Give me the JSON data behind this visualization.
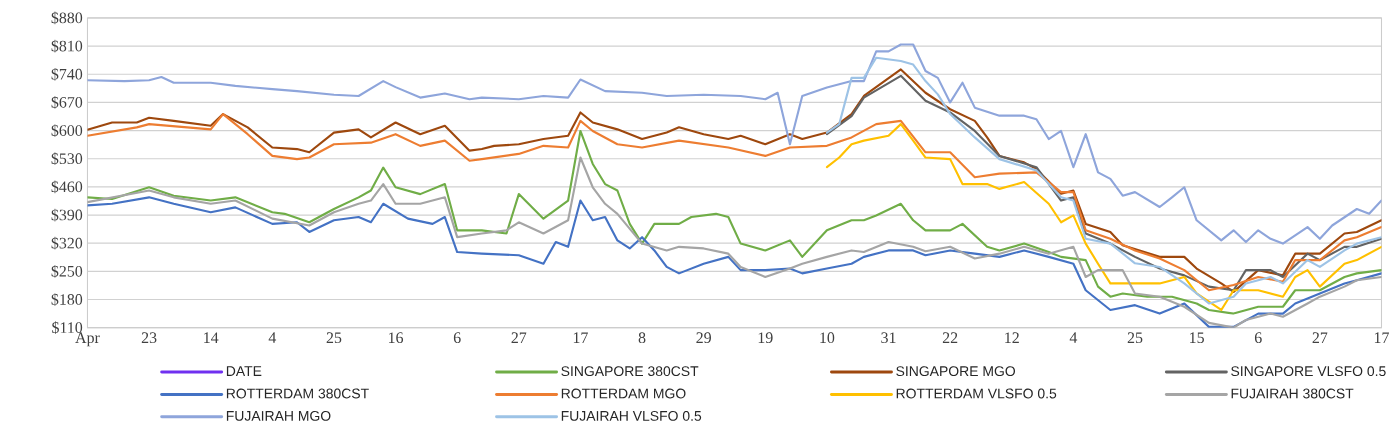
{
  "chart_data": {
    "type": "line",
    "ylim": [
      110,
      880
    ],
    "categories": [
      "Apr",
      null,
      null,
      null,
      null,
      "23",
      null,
      null,
      null,
      null,
      "14",
      null,
      null,
      null,
      null,
      "4",
      null,
      null,
      null,
      null,
      "25",
      null,
      null,
      null,
      null,
      "16",
      null,
      null,
      null,
      null,
      "6",
      null,
      null,
      null,
      null,
      "27",
      null,
      null,
      null,
      null,
      "17",
      null,
      null,
      null,
      null,
      "8",
      null,
      null,
      null,
      null,
      "29",
      null,
      null,
      null,
      null,
      "19",
      null,
      null,
      null,
      null,
      "10",
      null,
      null,
      null,
      null,
      "31",
      null,
      null,
      null,
      null,
      "22",
      null,
      null,
      null,
      null,
      "12",
      null,
      null,
      null,
      null,
      "4",
      null,
      null,
      null,
      null,
      "25",
      null,
      null,
      null,
      null,
      "15",
      null,
      null,
      null,
      null,
      "6",
      null,
      null,
      null,
      null,
      "27",
      null,
      null,
      null,
      null,
      "17"
    ],
    "yticks": [
      {
        "value": 110,
        "label": "$110"
      },
      {
        "value": 180,
        "label": "$180"
      },
      {
        "value": 250,
        "label": "$250"
      },
      {
        "value": 320,
        "label": "$320"
      },
      {
        "value": 390,
        "label": "$390"
      },
      {
        "value": 460,
        "label": "$460"
      },
      {
        "value": 530,
        "label": "$530"
      },
      {
        "value": 600,
        "label": "$600"
      },
      {
        "value": 670,
        "label": "$670"
      },
      {
        "value": 740,
        "label": "$740"
      },
      {
        "value": 810,
        "label": "$810"
      },
      {
        "value": 880,
        "label": "$880"
      }
    ],
    "grid": "y",
    "legend": "bottom",
    "series": [
      {
        "name": "DATE",
        "color": "#7030f0",
        "values": [
          null,
          null,
          null,
          null,
          null,
          null,
          null,
          null,
          null,
          null,
          null,
          null,
          null,
          null,
          null,
          null,
          null,
          null,
          null,
          null,
          null,
          null,
          null,
          null,
          null,
          null,
          null,
          null,
          null,
          null,
          null,
          null,
          null,
          null,
          null,
          null,
          null,
          null,
          null,
          null,
          null,
          null,
          null,
          null,
          null,
          null,
          null,
          null,
          null,
          null,
          null,
          null,
          null,
          null,
          null,
          null,
          null,
          null,
          null,
          null,
          null,
          null,
          null,
          null,
          null,
          null,
          null,
          null,
          null,
          null,
          null,
          null,
          null,
          null,
          null,
          null,
          null,
          null,
          null,
          null,
          null,
          null,
          null,
          null,
          null,
          null,
          null,
          null,
          null,
          null,
          null,
          null,
          null,
          null,
          null,
          null,
          null,
          null,
          null,
          null,
          null,
          null,
          null,
          null,
          null,
          null
        ]
      },
      {
        "name": "SINGAPORE 380CST",
        "color": "#70ad47",
        "values": [
          434,
          null,
          430,
          null,
          null,
          459,
          null,
          438,
          null,
          null,
          426,
          null,
          434,
          null,
          null,
          397,
          393,
          null,
          372,
          null,
          405,
          null,
          434,
          451,
          508,
          459,
          null,
          442,
          null,
          467,
          352,
          null,
          352,
          null,
          344,
          442,
          null,
          381,
          null,
          426,
          599,
          517,
          467,
          451,
          368,
          319,
          368,
          null,
          368,
          385,
          null,
          393,
          385,
          319,
          null,
          302,
          null,
          327,
          286,
          null,
          352,
          null,
          377,
          377,
          389,
          null,
          418,
          377,
          352,
          null,
          352,
          368,
          null,
          311,
          302,
          null,
          319,
          null,
          298,
          286,
          null,
          278,
          212,
          187,
          195,
          null,
          187,
          null,
          187,
          null,
          170,
          154,
          null,
          145,
          null,
          162,
          null,
          162,
          203,
          null,
          203,
          null,
          236,
          245,
          null,
          253
        ]
      },
      {
        "name": "SINGAPORE MGO",
        "color": "#9e480e",
        "values": [
          602,
          null,
          620,
          null,
          620,
          632,
          null,
          624,
          null,
          null,
          612,
          641,
          null,
          608,
          null,
          558,
          null,
          554,
          546,
          null,
          595,
          null,
          603,
          583,
          null,
          620,
          null,
          591,
          null,
          612,
          null,
          550,
          554,
          562,
          null,
          566,
          null,
          579,
          null,
          587,
          645,
          620,
          null,
          603,
          null,
          579,
          null,
          595,
          608,
          null,
          591,
          null,
          579,
          587,
          null,
          566,
          null,
          591,
          579,
          null,
          595,
          null,
          641,
          686,
          null,
          null,
          752,
          null,
          694,
          null,
          653,
          null,
          624,
          583,
          537,
          null,
          521,
          504,
          null,
          443,
          451,
          368,
          null,
          348,
          315,
          null,
          null,
          286,
          null,
          286,
          257,
          null,
          220,
          199,
          null,
          253,
          null,
          240,
          294,
          null,
          294,
          null,
          344,
          348,
          null,
          377
        ]
      },
      {
        "name": "SINGAPORE VLSFO 0.5",
        "color": "#636363",
        "values": [
          null,
          null,
          null,
          null,
          null,
          null,
          null,
          null,
          null,
          null,
          null,
          null,
          null,
          null,
          null,
          null,
          null,
          null,
          null,
          null,
          null,
          null,
          null,
          null,
          null,
          null,
          null,
          null,
          null,
          null,
          null,
          null,
          null,
          null,
          null,
          null,
          null,
          null,
          null,
          null,
          null,
          null,
          null,
          null,
          null,
          null,
          null,
          null,
          null,
          null,
          null,
          null,
          null,
          null,
          null,
          null,
          null,
          null,
          null,
          null,
          591,
          null,
          636,
          682,
          null,
          null,
          736,
          null,
          674,
          null,
          645,
          null,
          599,
          null,
          537,
          null,
          null,
          509,
          null,
          426,
          434,
          344,
          null,
          319,
          null,
          286,
          null,
          257,
          null,
          240,
          null,
          212,
          null,
          203,
          253,
          null,
          253,
          236,
          null,
          294,
          278,
          null,
          311,
          311,
          null,
          331
        ]
      },
      {
        "name": "ROTTERDAM 380CST",
        "color": "#4472c4",
        "values": [
          414,
          null,
          418,
          null,
          null,
          434,
          null,
          418,
          null,
          null,
          397,
          null,
          409,
          null,
          null,
          368,
          null,
          372,
          348,
          null,
          377,
          null,
          385,
          372,
          418,
          null,
          381,
          null,
          368,
          385,
          298,
          null,
          294,
          null,
          null,
          290,
          null,
          269,
          323,
          311,
          426,
          377,
          385,
          327,
          307,
          335,
          302,
          261,
          245,
          null,
          269,
          null,
          286,
          253,
          null,
          253,
          null,
          257,
          245,
          null,
          257,
          null,
          269,
          286,
          null,
          302,
          null,
          302,
          290,
          null,
          302,
          null,
          294,
          null,
          286,
          null,
          302,
          null,
          286,
          null,
          269,
          203,
          null,
          154,
          null,
          166,
          null,
          145,
          null,
          170,
          null,
          112,
          null,
          112,
          null,
          145,
          null,
          145,
          170,
          null,
          195,
          null,
          220,
          228,
          null,
          245
        ]
      },
      {
        "name": "ROTTERDAM MGO",
        "color": "#ed7d31",
        "values": [
          587,
          null,
          null,
          null,
          608,
          616,
          null,
          null,
          null,
          null,
          603,
          641,
          null,
          591,
          null,
          537,
          null,
          529,
          533,
          null,
          566,
          null,
          null,
          570,
          null,
          591,
          null,
          562,
          null,
          575,
          null,
          525,
          529,
          null,
          null,
          542,
          null,
          562,
          null,
          558,
          624,
          599,
          null,
          566,
          null,
          558,
          null,
          null,
          575,
          null,
          null,
          null,
          558,
          null,
          null,
          537,
          null,
          558,
          null,
          null,
          562,
          null,
          583,
          null,
          616,
          null,
          624,
          null,
          546,
          null,
          546,
          null,
          484,
          null,
          493,
          null,
          null,
          496,
          null,
          447,
          447,
          352,
          null,
          331,
          null,
          302,
          null,
          282,
          null,
          253,
          null,
          203,
          null,
          216,
          null,
          236,
          null,
          224,
          278,
          null,
          278,
          null,
          327,
          335,
          null,
          360
        ]
      },
      {
        "name": "ROTTERDAM VLSFO 0.5",
        "color": "#ffc000",
        "values": [
          null,
          null,
          null,
          null,
          null,
          null,
          null,
          null,
          null,
          null,
          null,
          null,
          null,
          null,
          null,
          null,
          null,
          null,
          null,
          null,
          null,
          null,
          null,
          null,
          null,
          null,
          null,
          null,
          null,
          null,
          null,
          null,
          null,
          null,
          null,
          null,
          null,
          null,
          null,
          null,
          null,
          null,
          null,
          null,
          null,
          null,
          null,
          null,
          null,
          null,
          null,
          null,
          null,
          null,
          null,
          null,
          null,
          null,
          null,
          null,
          509,
          533,
          566,
          575,
          null,
          587,
          616,
          575,
          533,
          null,
          529,
          467,
          null,
          467,
          455,
          null,
          472,
          null,
          418,
          372,
          389,
          319,
          269,
          220,
          null,
          220,
          null,
          220,
          null,
          236,
          195,
          null,
          154,
          203,
          null,
          203,
          null,
          187,
          236,
          253,
          212,
          null,
          269,
          278,
          null,
          311
        ]
      },
      {
        "name": "FUJAIRAH  380CST",
        "color": "#a5a5a5",
        "values": [
          422,
          null,
          null,
          null,
          null,
          451,
          null,
          434,
          null,
          null,
          418,
          null,
          426,
          null,
          null,
          381,
          null,
          null,
          364,
          null,
          397,
          null,
          418,
          426,
          467,
          418,
          null,
          418,
          null,
          434,
          335,
          null,
          344,
          null,
          352,
          372,
          null,
          344,
          null,
          377,
          533,
          459,
          418,
          393,
          null,
          319,
          null,
          302,
          311,
          null,
          307,
          null,
          294,
          261,
          null,
          236,
          null,
          257,
          269,
          null,
          286,
          null,
          302,
          298,
          null,
          323,
          null,
          311,
          300,
          null,
          311,
          null,
          282,
          null,
          294,
          null,
          311,
          null,
          294,
          null,
          311,
          236,
          253,
          null,
          253,
          195,
          null,
          187,
          null,
          162,
          null,
          122,
          null,
          110,
          129,
          null,
          145,
          137,
          null,
          170,
          187,
          null,
          212,
          228,
          null,
          236
        ]
      },
      {
        "name": "FUJAIRAH MGO",
        "color": "#8ea5db",
        "values": [
          725,
          null,
          null,
          723,
          null,
          725,
          733,
          719,
          null,
          null,
          719,
          null,
          711,
          null,
          null,
          703,
          null,
          698,
          null,
          null,
          689,
          null,
          686,
          null,
          723,
          708,
          null,
          682,
          null,
          692,
          null,
          678,
          682,
          null,
          null,
          678,
          null,
          686,
          null,
          682,
          727,
          null,
          698,
          null,
          null,
          694,
          null,
          686,
          null,
          null,
          689,
          null,
          null,
          686,
          null,
          678,
          694,
          566,
          686,
          null,
          707,
          null,
          723,
          723,
          797,
          797,
          814,
          814,
          748,
          731,
          670,
          719,
          657,
          null,
          637,
          null,
          637,
          628,
          579,
          599,
          509,
          591,
          496,
          480,
          438,
          447,
          null,
          410,
          434,
          459,
          377,
          null,
          327,
          352,
          323,
          352,
          331,
          319,
          null,
          360,
          331,
          364,
          null,
          405,
          393,
          426
        ]
      },
      {
        "name": "FUJAIRAH VLSFO 0.5",
        "color": "#9dc3e6",
        "values": [
          null,
          null,
          null,
          null,
          null,
          null,
          null,
          null,
          null,
          null,
          null,
          null,
          null,
          null,
          null,
          null,
          null,
          null,
          null,
          null,
          null,
          null,
          null,
          null,
          null,
          null,
          null,
          null,
          null,
          null,
          null,
          null,
          null,
          null,
          null,
          null,
          null,
          null,
          null,
          null,
          null,
          null,
          null,
          null,
          null,
          null,
          null,
          null,
          null,
          null,
          null,
          null,
          null,
          null,
          null,
          null,
          null,
          null,
          null,
          null,
          595,
          616,
          731,
          731,
          781,
          null,
          773,
          764,
          723,
          690,
          641,
          null,
          583,
          null,
          529,
          null,
          null,
          501,
          null,
          434,
          426,
          331,
          null,
          319,
          null,
          270,
          null,
          261,
          null,
          220,
          null,
          170,
          null,
          187,
          220,
          null,
          236,
          220,
          null,
          278,
          261,
          null,
          302,
          319,
          null,
          335
        ]
      }
    ]
  }
}
